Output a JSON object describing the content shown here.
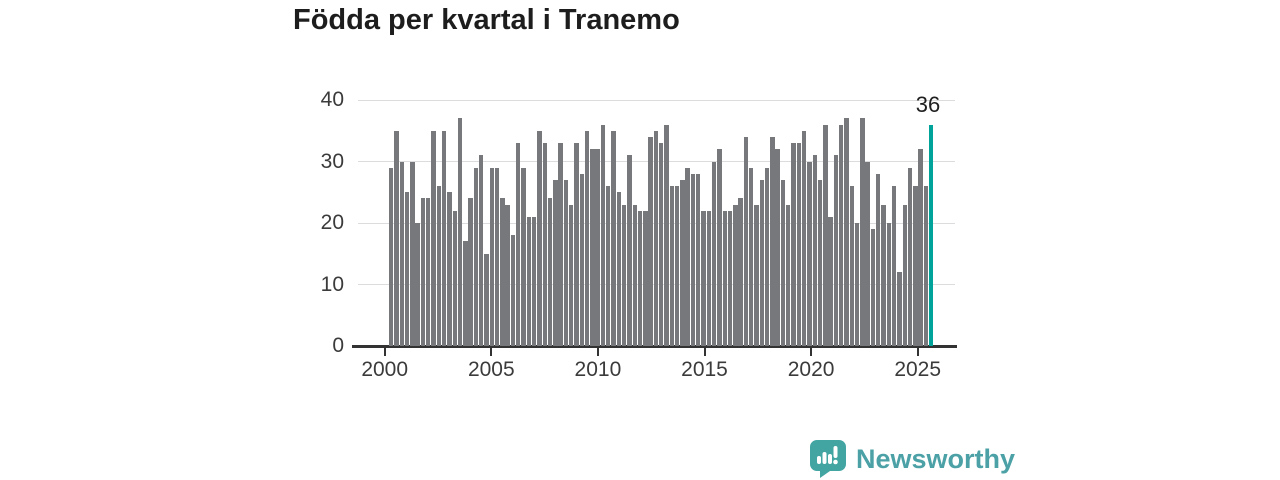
{
  "title": "Födda per kvartal i Tranemo",
  "annotation": {
    "label": "36"
  },
  "logo": {
    "text": "Newsworthy",
    "icon": "newsworthy-speech-bubble-bar-chart-icon"
  },
  "colors": {
    "bar": "#77787b",
    "highlight": "#00a39a",
    "grid": "#dcdcde",
    "axis": "#333333",
    "tick_label": "#3b3b3b",
    "title": "#1d1d1d",
    "logo_text": "#4ba1a6",
    "logo_icon": "#42a5a2"
  },
  "chart_data": {
    "type": "bar",
    "title": "Födda per kvartal i Tranemo",
    "x_start": "2000-Q1",
    "x_end": "2025-Q3",
    "frequency": "quarterly",
    "x_tick_labels": [
      "2000",
      "2005",
      "2010",
      "2015",
      "2020",
      "2025"
    ],
    "y_ticks": [
      0,
      10,
      20,
      30,
      40
    ],
    "ylim": [
      0,
      40
    ],
    "grid": true,
    "legend": "none",
    "values": [
      29,
      35,
      30,
      25,
      30,
      20,
      24,
      24,
      35,
      26,
      35,
      25,
      22,
      37,
      17,
      24,
      29,
      31,
      15,
      29,
      29,
      24,
      23,
      18,
      33,
      29,
      21,
      21,
      35,
      33,
      24,
      27,
      33,
      27,
      23,
      33,
      28,
      35,
      32,
      32,
      36,
      26,
      35,
      25,
      23,
      31,
      23,
      22,
      22,
      34,
      35,
      33,
      36,
      26,
      26,
      27,
      29,
      28,
      28,
      22,
      22,
      30,
      32,
      22,
      22,
      23,
      24,
      34,
      29,
      23,
      27,
      29,
      34,
      32,
      27,
      23,
      33,
      33,
      35,
      30,
      31,
      27,
      36,
      21,
      31,
      36,
      37,
      26,
      20,
      37,
      30,
      19,
      28,
      23,
      20,
      26,
      12,
      23,
      29,
      26,
      32,
      26,
      36
    ],
    "highlight_last": true,
    "highlight_value": 36
  }
}
